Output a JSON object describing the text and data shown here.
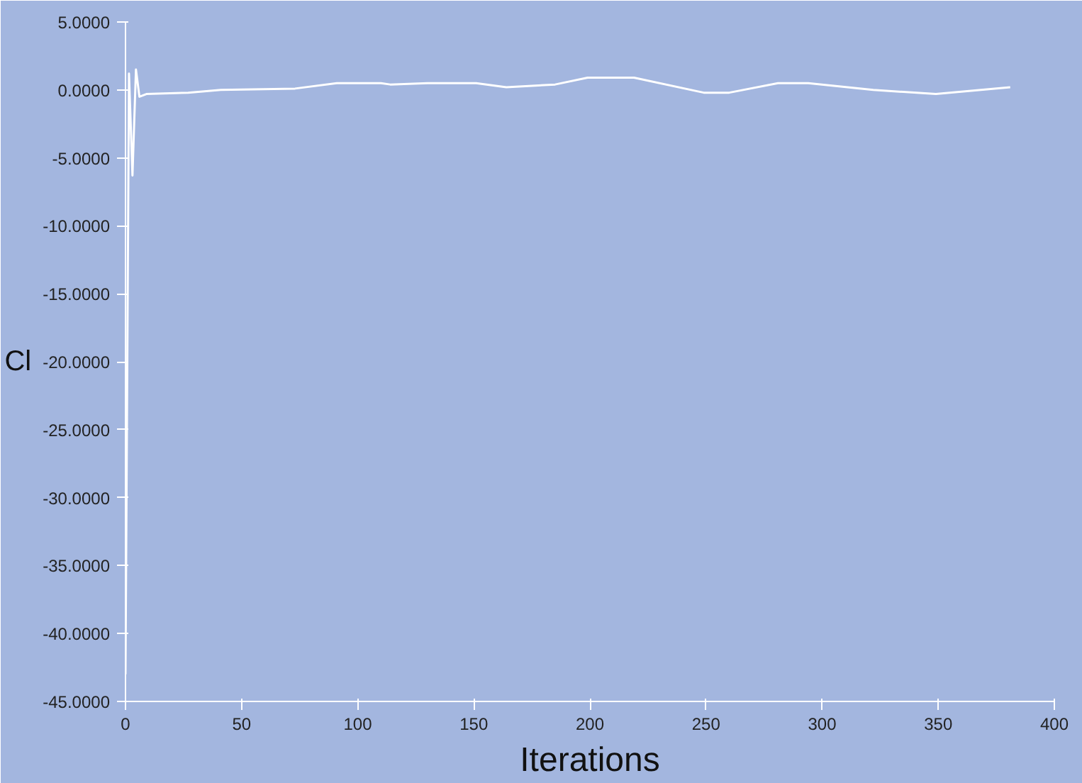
{
  "chart_data": {
    "type": "line",
    "xlabel": "Iterations",
    "ylabel": "Cl",
    "xlim": [
      0,
      400
    ],
    "ylim": [
      -45,
      5
    ],
    "xticks": [
      0,
      50,
      100,
      150,
      200,
      250,
      300,
      350,
      400
    ],
    "yticks": [
      {
        "value": 5,
        "label": "5.0000"
      },
      {
        "value": 0,
        "label": "0.0000"
      },
      {
        "value": -5,
        "label": "-5.0000"
      },
      {
        "value": -10,
        "label": "-10.0000"
      },
      {
        "value": -15,
        "label": "-15.0000"
      },
      {
        "value": -20,
        "label": "-20.0000"
      },
      {
        "value": -25,
        "label": "-25.0000"
      },
      {
        "value": -30,
        "label": "-30.0000"
      },
      {
        "value": -35,
        "label": "-35.0000"
      },
      {
        "value": -40,
        "label": "-40.0000"
      },
      {
        "value": -45,
        "label": "-45.0000"
      }
    ],
    "grid": false,
    "line_style": "solid",
    "marker": "none",
    "series": [
      {
        "color": "#ffffff",
        "x": [
          0,
          1.5,
          3,
          4.5,
          6,
          9,
          27,
          41,
          73,
          91,
          110,
          114,
          130,
          151,
          164,
          185,
          199,
          219,
          249,
          260,
          281,
          294,
          322,
          349,
          381
        ],
        "values": [
          -43,
          1.2,
          -6.3,
          1.5,
          -0.5,
          -0.3,
          -0.2,
          0,
          0.1,
          0.5,
          0.5,
          0.4,
          0.5,
          0.5,
          0.2,
          0.4,
          0.9,
          0.9,
          -0.2,
          -0.2,
          0.5,
          0.5,
          0,
          -0.3,
          0.2
        ]
      }
    ]
  }
}
